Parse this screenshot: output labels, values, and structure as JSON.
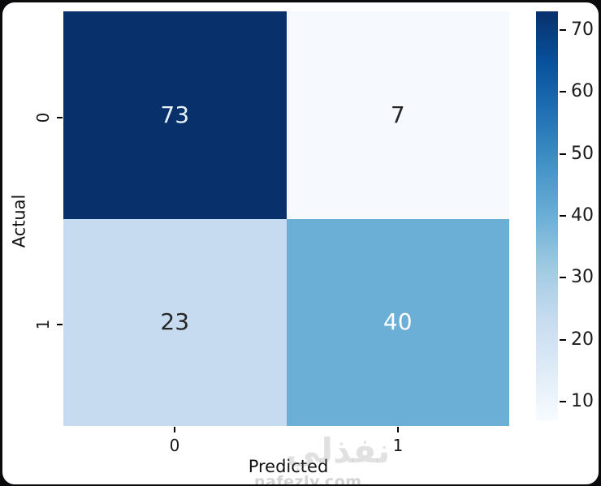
{
  "chart_data": {
    "type": "heatmap",
    "title": "",
    "xlabel": "Predicted",
    "ylabel": "Actual",
    "x_categories": [
      "0",
      "1"
    ],
    "y_categories": [
      "0",
      "1"
    ],
    "matrix": [
      [
        73,
        7
      ],
      [
        23,
        40
      ]
    ],
    "vmin": 7,
    "vmax": 73,
    "colormap": "Blues",
    "colormap_stops": [
      "#f7fbff",
      "#deebf7",
      "#c6dbef",
      "#9ecae1",
      "#6baed6",
      "#4292c6",
      "#2171b5",
      "#08519c",
      "#08306b"
    ],
    "colorbar_ticks": [
      10,
      20,
      30,
      40,
      50,
      60,
      70
    ],
    "cell_colors": [
      [
        "#08306b",
        "#f6f9fd"
      ],
      [
        "#c6dbef",
        "#6baed6"
      ]
    ],
    "annot_text_colors": [
      [
        "#e8f0f8",
        "#262626"
      ],
      [
        "#262626",
        "#ffffff"
      ]
    ],
    "legend_position": "right-colorbar",
    "grid": false
  },
  "watermark": {
    "arabic": "نفذلي",
    "domain": "nafezly.com"
  }
}
